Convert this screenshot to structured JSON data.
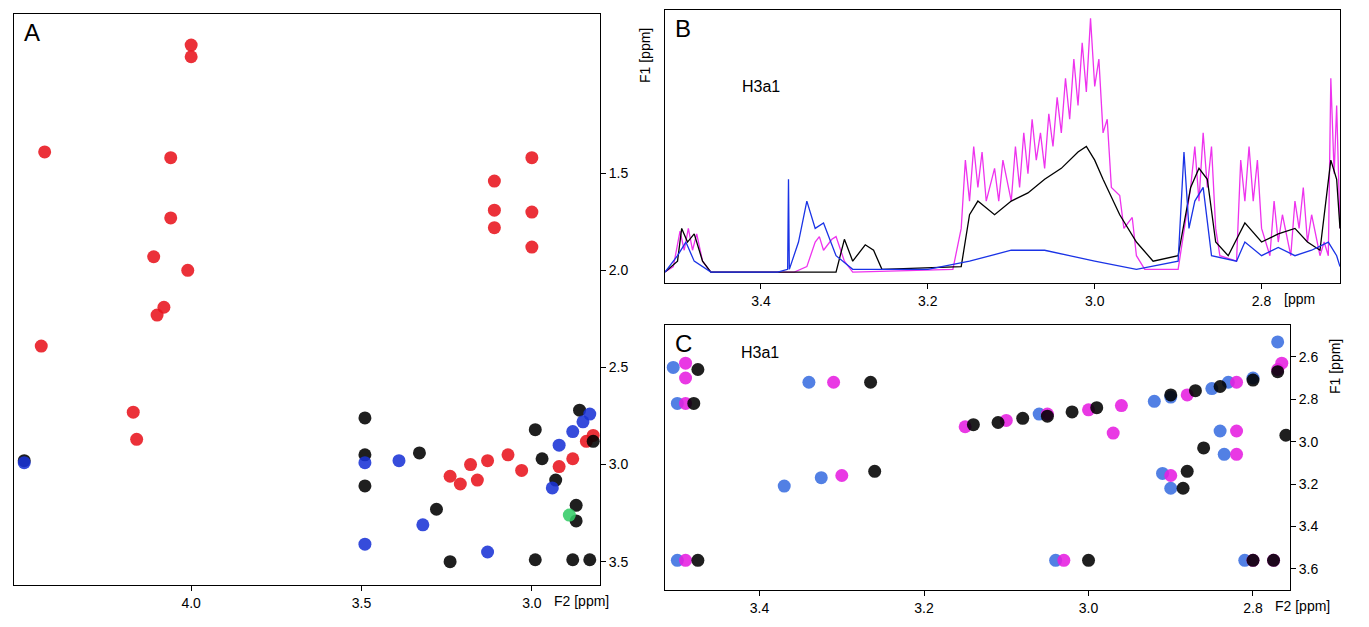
{
  "chart_data": [
    {
      "type": "scatter",
      "title": "A",
      "x_label": "F2 [ppm]",
      "y_label": "F1 [ppm]",
      "xlim": [
        4.52,
        2.8
      ],
      "ylim": [
        3.62,
        0.68
      ],
      "xticks": [
        {
          "value": 4,
          "label": "4.0"
        },
        3.5,
        {
          "value": 3,
          "label": "3.0"
        }
      ],
      "yticks": [
        1.5,
        {
          "value": 2,
          "label": "2.0"
        },
        2.5,
        {
          "value": 3,
          "label": "3.0"
        },
        3.5
      ],
      "grid": false,
      "marker": "circle",
      "series": [
        {
          "color": "#e8141e",
          "x": [
            4.0,
            4.0,
            4.43,
            4.06,
            4.06,
            4.11,
            4.01,
            4.08,
            4.1,
            4.44,
            4.17,
            4.16,
            3.11,
            3.11,
            3.11,
            3.0,
            3.0,
            3.0,
            3.24,
            3.21,
            3.18,
            3.16,
            3.13,
            3.07,
            3.03,
            2.92,
            2.88,
            2.84,
            2.82
          ],
          "values": [
            0.84,
            0.9,
            1.39,
            1.42,
            1.73,
            1.93,
            2.0,
            2.19,
            2.23,
            2.39,
            2.73,
            2.87,
            1.54,
            1.69,
            1.78,
            1.42,
            1.7,
            1.88,
            3.06,
            3.1,
            3.0,
            3.08,
            2.98,
            2.95,
            3.03,
            3.01,
            2.97,
            2.88,
            2.85
          ]
        },
        {
          "color": "#000000",
          "x": [
            4.49,
            3.49,
            3.49,
            3.49,
            3.33,
            3.28,
            3.24,
            2.99,
            2.97,
            2.86,
            2.93,
            2.87,
            2.87,
            2.88,
            2.83,
            2.99,
            2.82
          ],
          "values": [
            2.98,
            2.76,
            2.95,
            3.11,
            2.94,
            3.23,
            3.5,
            2.82,
            2.97,
            2.72,
            3.08,
            3.21,
            3.29,
            3.49,
            3.49,
            3.49,
            2.88
          ]
        },
        {
          "color": "#1a33d6",
          "x": [
            4.49,
            3.49,
            3.49,
            3.39,
            3.32,
            3.13,
            2.88,
            2.92,
            2.94,
            2.83,
            2.85
          ],
          "values": [
            2.99,
            2.99,
            3.41,
            2.98,
            3.31,
            3.45,
            2.83,
            2.9,
            3.12,
            2.74,
            2.78
          ]
        },
        {
          "color": "#33cc66",
          "x": [
            2.89
          ],
          "values": [
            3.26
          ]
        }
      ]
    },
    {
      "type": "line",
      "title": "B",
      "x_label": "[ppm",
      "xlim": [
        3.515,
        2.706
      ],
      "ylim": [
        0,
        1
      ],
      "xticks": [
        3.4,
        3.2,
        {
          "value": 3,
          "label": "3.0"
        },
        2.8
      ],
      "tick_labels": "x",
      "grid": false,
      "line_style": "solid",
      "annotations": [
        {
          "text": "H3a1",
          "x": 3.4,
          "y": 0.72
        }
      ],
      "series": [
        {
          "color": "#ee33ee",
          "x": [
            3.515,
            3.505,
            3.497,
            3.492,
            3.487,
            3.482,
            3.477,
            3.47,
            3.46,
            3.36,
            3.345,
            3.335,
            3.33,
            3.325,
            3.315,
            3.31,
            3.3,
            3.29,
            3.17,
            3.16,
            3.155,
            3.15,
            3.145,
            3.14,
            3.135,
            3.13,
            3.12,
            3.115,
            3.11,
            3.1,
            3.095,
            3.09,
            3.085,
            3.08,
            3.075,
            3.07,
            3.065,
            3.06,
            3.055,
            3.05,
            3.045,
            3.04,
            3.035,
            3.03,
            3.025,
            3.02,
            3.015,
            3.01,
            3.005,
            3.0,
            2.995,
            2.99,
            2.985,
            2.98,
            2.97,
            2.965,
            2.955,
            2.95,
            2.94,
            2.9,
            2.885,
            2.88,
            2.875,
            2.87,
            2.865,
            2.86,
            2.855,
            2.85,
            2.83,
            2.825,
            2.82,
            2.815,
            2.81,
            2.805,
            2.8,
            2.79,
            2.785,
            2.78,
            2.775,
            2.765,
            2.76,
            2.755,
            2.75,
            2.745,
            2.74,
            2.73,
            2.725,
            2.72,
            2.717,
            2.713,
            2.71,
            2.706
          ],
          "values": [
            0.04,
            0.06,
            0.19,
            0.12,
            0.2,
            0.12,
            0.18,
            0.08,
            0.04,
            0.04,
            0.06,
            0.15,
            0.17,
            0.12,
            0.16,
            0.17,
            0.08,
            0.04,
            0.05,
            0.2,
            0.45,
            0.3,
            0.5,
            0.35,
            0.48,
            0.3,
            0.42,
            0.3,
            0.45,
            0.3,
            0.5,
            0.35,
            0.55,
            0.4,
            0.6,
            0.45,
            0.55,
            0.42,
            0.62,
            0.5,
            0.68,
            0.55,
            0.75,
            0.6,
            0.82,
            0.65,
            0.88,
            0.7,
            0.97,
            0.72,
            0.82,
            0.55,
            0.6,
            0.35,
            0.32,
            0.2,
            0.24,
            0.1,
            0.05,
            0.05,
            0.35,
            0.5,
            0.3,
            0.55,
            0.35,
            0.5,
            0.2,
            0.1,
            0.08,
            0.45,
            0.3,
            0.5,
            0.3,
            0.45,
            0.2,
            0.1,
            0.3,
            0.15,
            0.25,
            0.1,
            0.3,
            0.2,
            0.35,
            0.15,
            0.25,
            0.1,
            0.15,
            0.1,
            0.75,
            0.4,
            0.65,
            0.2
          ]
        },
        {
          "color": "#000000",
          "x": [
            3.515,
            3.5,
            3.495,
            3.488,
            3.48,
            3.47,
            3.46,
            3.31,
            3.3,
            3.29,
            3.275,
            3.265,
            3.255,
            3.16,
            3.15,
            3.14,
            3.12,
            3.1,
            3.08,
            3.06,
            3.04,
            3.02,
            3.01,
            3.0,
            2.99,
            2.97,
            2.95,
            2.93,
            2.9,
            2.885,
            2.875,
            2.865,
            2.855,
            2.84,
            2.82,
            2.8,
            2.78,
            2.76,
            2.745,
            2.73,
            2.717,
            2.71,
            2.706
          ],
          "values": [
            0.04,
            0.08,
            0.2,
            0.15,
            0.18,
            0.08,
            0.04,
            0.04,
            0.16,
            0.08,
            0.14,
            0.12,
            0.05,
            0.06,
            0.25,
            0.3,
            0.25,
            0.3,
            0.33,
            0.38,
            0.42,
            0.48,
            0.5,
            0.45,
            0.38,
            0.25,
            0.15,
            0.08,
            0.1,
            0.35,
            0.42,
            0.38,
            0.15,
            0.1,
            0.22,
            0.15,
            0.18,
            0.2,
            0.15,
            0.12,
            0.45,
            0.38,
            0.2
          ]
        },
        {
          "color": "#1a33e6",
          "x": [
            3.515,
            3.5,
            3.49,
            3.48,
            3.46,
            3.38,
            3.368,
            3.367,
            3.366,
            3.355,
            3.345,
            3.335,
            3.325,
            3.31,
            3.29,
            3.2,
            3.15,
            3.1,
            3.06,
            3.0,
            2.95,
            2.9,
            2.893,
            2.887,
            2.88,
            2.87,
            2.86,
            2.83,
            2.82,
            2.8,
            2.78,
            2.76,
            2.74,
            2.72,
            2.71,
            2.706
          ],
          "values": [
            0.04,
            0.1,
            0.15,
            0.08,
            0.04,
            0.04,
            0.05,
            0.38,
            0.05,
            0.15,
            0.3,
            0.2,
            0.22,
            0.1,
            0.05,
            0.05,
            0.08,
            0.12,
            0.12,
            0.08,
            0.05,
            0.08,
            0.48,
            0.2,
            0.3,
            0.35,
            0.1,
            0.08,
            0.15,
            0.1,
            0.13,
            0.1,
            0.12,
            0.15,
            0.1,
            0.06
          ]
        }
      ]
    },
    {
      "type": "scatter",
      "title": "C",
      "x_label": "F2 [ppm]",
      "y_label": "F1 [ppm]",
      "xlim": [
        3.515,
        2.755
      ],
      "ylim": [
        3.7,
        2.45
      ],
      "xticks": [
        3.4,
        3.2,
        {
          "value": 3,
          "label": "3.0"
        },
        2.8
      ],
      "yticks": [
        2.6,
        2.8,
        {
          "value": 3,
          "label": "3.0"
        },
        3.2,
        3.4,
        3.6
      ],
      "grid": false,
      "marker": "circle",
      "annotations": [
        {
          "text": "H3a1",
          "x": 3.4,
          "y": 2.58
        }
      ],
      "series": [
        {
          "color": "#3a6ee0",
          "x": [
            3.505,
            3.5,
            3.34,
            3.37,
            3.325,
            3.5,
            3.04,
            2.91,
            2.9,
            2.84,
            2.835,
            2.81,
            2.92,
            2.83,
            2.77,
            3.06,
            2.9,
            2.85,
            2.8
          ],
          "values": [
            2.65,
            2.82,
            2.72,
            3.21,
            3.17,
            3.56,
            3.56,
            3.15,
            3.22,
            2.95,
            3.06,
            3.56,
            2.81,
            2.72,
            2.53,
            2.87,
            2.79,
            2.75,
            2.7
          ]
        },
        {
          "color": "#e61ee0",
          "x": [
            3.49,
            3.49,
            3.49,
            3.31,
            3.3,
            3.49,
            3.03,
            2.9,
            2.82,
            2.82,
            2.8,
            2.775,
            2.97,
            2.765,
            3.15,
            3.1,
            3.05,
            3.0,
            2.96,
            2.88,
            2.82,
            2.77
          ],
          "values": [
            2.63,
            2.7,
            2.82,
            2.72,
            3.16,
            3.56,
            3.56,
            3.16,
            2.95,
            3.06,
            3.56,
            3.56,
            2.96,
            2.63,
            2.93,
            2.9,
            2.87,
            2.85,
            2.83,
            2.78,
            2.72,
            2.66
          ]
        },
        {
          "color": "#000000",
          "x": [
            3.475,
            3.48,
            3.265,
            3.26,
            3.475,
            3.0,
            2.88,
            2.885,
            2.86,
            2.8,
            2.775,
            2.76,
            3.14,
            3.11,
            3.08,
            3.05,
            3.02,
            2.99,
            2.9,
            2.87,
            2.84,
            2.8,
            2.77
          ],
          "values": [
            2.66,
            2.82,
            2.72,
            3.14,
            3.56,
            3.56,
            3.14,
            3.22,
            3.03,
            3.56,
            3.56,
            2.97,
            2.92,
            2.91,
            2.89,
            2.88,
            2.86,
            2.84,
            2.78,
            2.76,
            2.74,
            2.71,
            2.67
          ]
        }
      ]
    }
  ]
}
